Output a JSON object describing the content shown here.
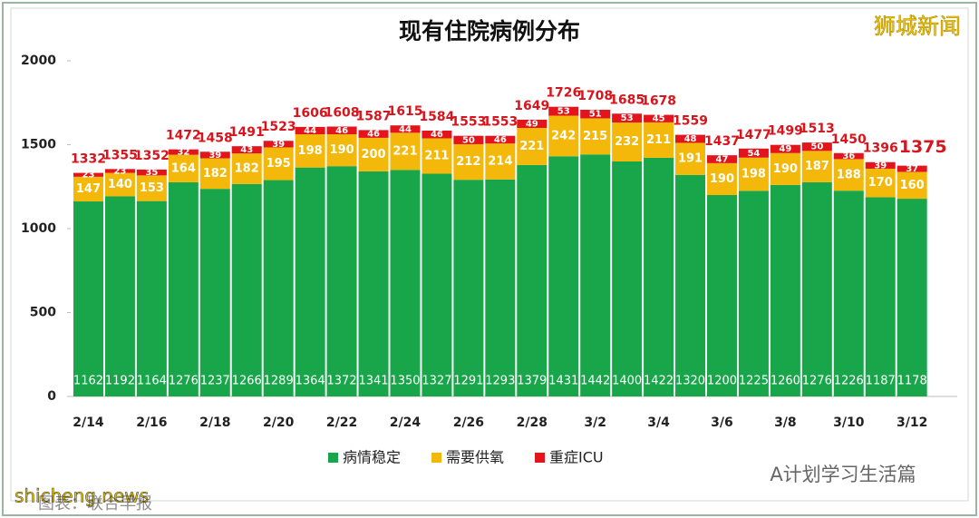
{
  "chart_data": {
    "type": "stacked_bar",
    "title": "现有住院病例分布",
    "categories": [
      "2/14",
      null,
      "2/16",
      null,
      "2/18",
      null,
      "2/20",
      null,
      "2/22",
      null,
      "2/24",
      null,
      "2/26",
      null,
      "2/28",
      null,
      "3/2",
      null,
      "3/4",
      null,
      "3/6",
      null,
      "3/8",
      null,
      "3/10",
      null,
      "3/12"
    ],
    "series": [
      {
        "name": "病情稳定",
        "color": "#19a64a",
        "values": [
          1162,
          1192,
          1164,
          1276,
          1237,
          1266,
          1289,
          1364,
          1372,
          1341,
          1350,
          1327,
          1291,
          1293,
          1379,
          1431,
          1442,
          1400,
          1422,
          1320,
          1200,
          1225,
          1260,
          1276,
          1226,
          1187,
          1178
        ]
      },
      {
        "name": "需要供氧",
        "color": "#f4b80a",
        "values": [
          147,
          140,
          153,
          164,
          182,
          182,
          195,
          198,
          190,
          200,
          221,
          211,
          212,
          214,
          221,
          242,
          215,
          232,
          211,
          191,
          190,
          198,
          190,
          187,
          188,
          170,
          160
        ]
      },
      {
        "name": "重症ICU",
        "color": "#e3141c",
        "values": [
          23,
          23,
          35,
          32,
          39,
          43,
          39,
          44,
          46,
          46,
          44,
          46,
          50,
          46,
          49,
          53,
          51,
          53,
          45,
          48,
          47,
          54,
          49,
          50,
          36,
          39,
          37
        ]
      }
    ],
    "totals": [
      1332,
      1355,
      1352,
      1472,
      1458,
      1491,
      1523,
      1606,
      1608,
      1587,
      1615,
      1584,
      1553,
      1553,
      1649,
      1726,
      1708,
      1685,
      1678,
      1559,
      1437,
      1477,
      1499,
      1513,
      1450,
      1396,
      1375
    ],
    "ylim": [
      0,
      2000
    ],
    "yticks": [
      0,
      500,
      1000,
      1500,
      2000
    ],
    "grid": false,
    "legend": "bottom"
  },
  "watermarks": {
    "brand": "狮城新闻",
    "account": "A计划学习生活篇",
    "site": "shicheng.news",
    "source": "图表：联合早报"
  }
}
